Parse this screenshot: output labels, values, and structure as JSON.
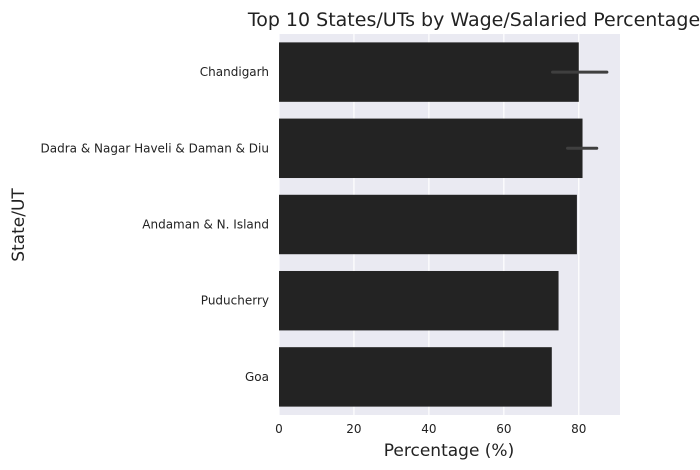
{
  "chart_data": {
    "type": "bar",
    "orientation": "horizontal",
    "title": "Top 10 States/UTs by Wage/Salaried Percentage",
    "xlabel": "Percentage (%)",
    "ylabel": "State/UT",
    "categories": [
      "Chandigarh",
      "Dadra & Nagar Haveli & Daman & Diu",
      "Andaman & N. Island",
      "Puducherry",
      "Goa"
    ],
    "values": [
      80.0,
      81.0,
      79.5,
      74.6,
      72.8
    ],
    "error_bars": [
      [
        73.0,
        87.5
      ],
      [
        77.0,
        84.8
      ],
      null,
      null,
      null
    ],
    "xlim": [
      0,
      91
    ],
    "xticks": [
      0,
      20,
      40,
      60,
      80
    ],
    "grid": true,
    "colors": {
      "bar": "#232323",
      "background": "#eaeaf2",
      "grid": "#ffffff",
      "error_bar": "#3f3f3f"
    }
  }
}
